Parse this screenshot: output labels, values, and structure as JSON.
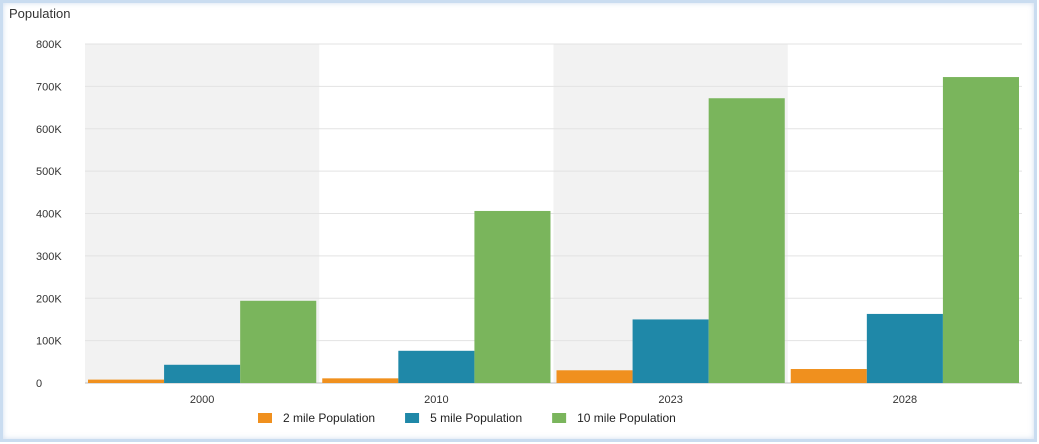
{
  "chart_data": {
    "type": "bar",
    "title": "Population",
    "categories": [
      "2000",
      "2010",
      "2023",
      "2028"
    ],
    "series": [
      {
        "name": "2 mile Population",
        "color": "#f0901e",
        "values": [
          8000,
          11000,
          30000,
          33000
        ]
      },
      {
        "name": "5 mile Population",
        "color": "#1f88a8",
        "values": [
          43000,
          76000,
          150000,
          163000
        ]
      },
      {
        "name": "10 mile Population",
        "color": "#7ab55c",
        "values": [
          194000,
          406000,
          672000,
          722000
        ]
      }
    ],
    "ylim": [
      0,
      800000
    ],
    "yticks": [
      0,
      100000,
      200000,
      300000,
      400000,
      500000,
      600000,
      700000,
      800000
    ],
    "ytick_labels": [
      "0",
      "100K",
      "200K",
      "300K",
      "400K",
      "500K",
      "600K",
      "700K",
      "800K"
    ],
    "grid": true,
    "legend_position": "bottom-center",
    "band_color": "#f2f2f2"
  }
}
